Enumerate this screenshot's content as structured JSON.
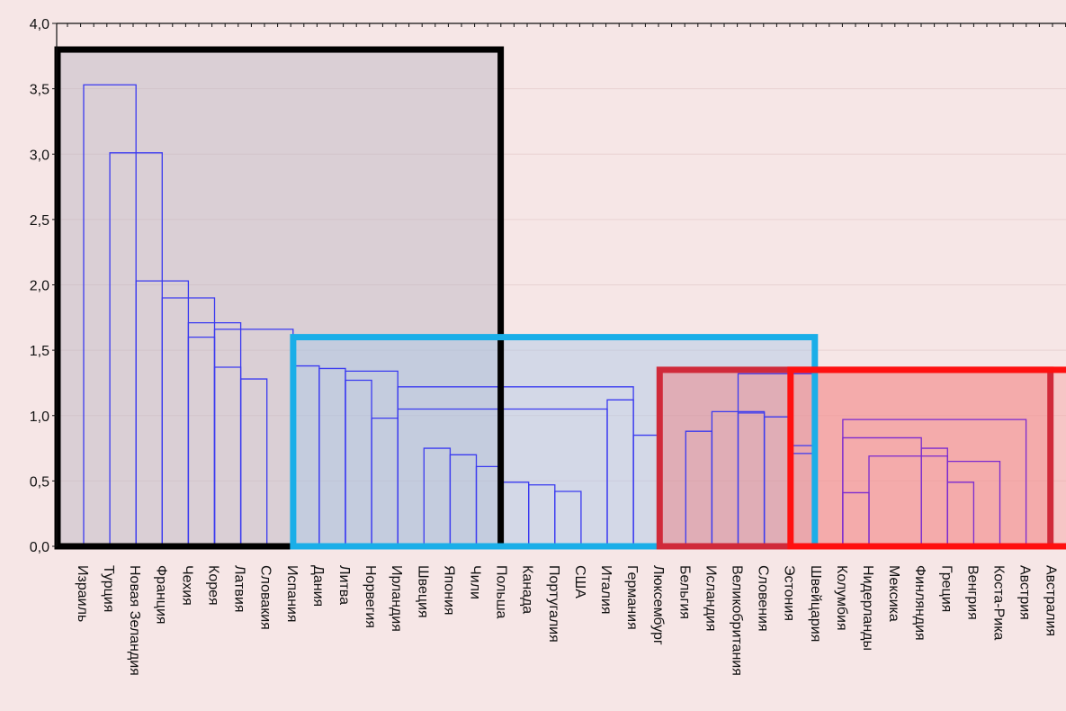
{
  "chart_data": {
    "type": "dendrogram",
    "title": "",
    "xlabel": "",
    "ylabel": "",
    "ylim": [
      0,
      4
    ],
    "y_ticks": [
      "0,0",
      "0,5",
      "1,0",
      "1,5",
      "2,0",
      "2,5",
      "3,0",
      "3,5",
      "4,0"
    ],
    "grid": true,
    "leaves": [
      "Израиль",
      "Турция",
      "Новая Зеландия",
      "Франция",
      "Чехия",
      "Корея",
      "Латвия",
      "Словакия",
      "Испания",
      "Дания",
      "Литва",
      "Норвегия",
      "Ирландия",
      "Швеция",
      "Япония",
      "Чили",
      "Польша",
      "Канада",
      "Португалия",
      "США",
      "Италия",
      "Германия",
      "Люксембург",
      "Бельгия",
      "Исландия",
      "Великобритания",
      "Словения",
      "Эстония",
      "Швейцария",
      "Колумбия",
      "Нидерланды",
      "Мексика",
      "Финляндия",
      "Греция",
      "Венгрия",
      "Коста-Рика",
      "Австрия",
      "Австралия"
    ],
    "merges": [
      {
        "left": 18,
        "right": 19,
        "height": 0.42
      },
      {
        "left": 17,
        "right": 18,
        "height": 0.47
      },
      {
        "left": 16,
        "right": 17,
        "height": 0.49
      },
      {
        "left": 15,
        "right": 16,
        "height": 0.61
      },
      {
        "left": 14,
        "right": 15,
        "height": 0.7
      },
      {
        "left": 13,
        "right": 14,
        "height": 0.75
      },
      {
        "left": 21,
        "right": 22,
        "height": 0.85
      },
      {
        "left": 11,
        "right": 12,
        "height": 0.98
      },
      {
        "left": 10,
        "right": 11,
        "height": 1.27
      },
      {
        "left": 12,
        "right": 20,
        "height": 1.05
      },
      {
        "left": 21,
        "right": 20,
        "height": 1.12
      },
      {
        "left": 12,
        "right": 21,
        "height": 1.22
      },
      {
        "left": 10,
        "right": 12,
        "height": 1.34
      },
      {
        "left": 9,
        "right": 10,
        "height": 1.36
      },
      {
        "left": 8,
        "right": 9,
        "height": 1.38
      },
      {
        "left": 33,
        "right": 34,
        "height": 0.49
      },
      {
        "left": 33,
        "right": 35,
        "height": 0.65
      },
      {
        "left": 30,
        "right": 33,
        "height": 0.69
      },
      {
        "left": 32,
        "right": 33,
        "height": 0.75
      },
      {
        "left": 29,
        "right": 30,
        "height": 0.41
      },
      {
        "left": 29,
        "right": 32,
        "height": 0.83
      },
      {
        "left": 29,
        "right": 36,
        "height": 0.97
      },
      {
        "left": 27,
        "right": 28,
        "height": 0.71
      },
      {
        "left": 27,
        "right": 28,
        "height": 0.77
      },
      {
        "left": 26,
        "right": 27,
        "height": 0.99
      },
      {
        "left": 23,
        "right": 24,
        "height": 0.88
      },
      {
        "left": 25,
        "right": 26,
        "height": 1.02
      },
      {
        "left": 24,
        "right": 26,
        "height": 1.03
      },
      {
        "left": 25,
        "right": 28,
        "height": 1.32
      },
      {
        "left": 6,
        "right": 7,
        "height": 1.28
      },
      {
        "left": 5,
        "right": 6,
        "height": 1.37
      },
      {
        "left": 4,
        "right": 5,
        "height": 1.6
      },
      {
        "left": 5,
        "right": 8,
        "height": 1.66
      },
      {
        "left": 4,
        "right": 6,
        "height": 1.71
      },
      {
        "left": 3,
        "right": 5,
        "height": 1.9
      },
      {
        "left": 2,
        "right": 4,
        "height": 2.03
      },
      {
        "left": 1,
        "right": 3,
        "height": 3.01
      },
      {
        "left": 0,
        "right": 2,
        "height": 3.53
      }
    ],
    "cluster_boxes": [
      {
        "from": 0,
        "to": 16,
        "top": 3.8,
        "color": "#000000",
        "fill": "#b8b3c2"
      },
      {
        "from": 9,
        "to": 28,
        "top": 1.6,
        "color": "#1aaee8",
        "fill": "#a9c7e8"
      },
      {
        "from": 23,
        "to": 37,
        "top": 1.35,
        "color": "#d02a3a",
        "fill": "#f07a7a"
      },
      {
        "from": 28,
        "to": 38,
        "top": 1.35,
        "color": "#ff1010",
        "fill": "#f7a0a0"
      }
    ],
    "line_colors": {
      "link": "#3a3af0",
      "link_alt": "#7a2ad0"
    }
  }
}
